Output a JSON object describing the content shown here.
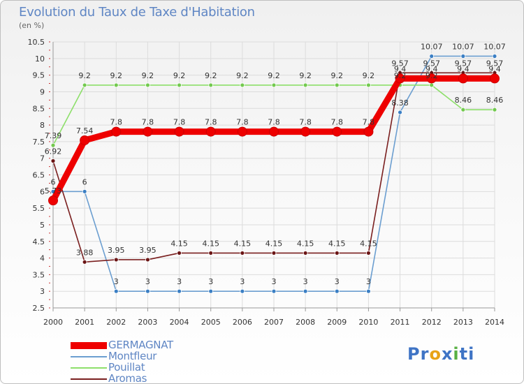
{
  "chart_data": {
    "type": "line",
    "title": "Evolution du Taux de Taxe d'Habitation",
    "unit_label": "(en %)",
    "x": [
      "2000",
      "2001",
      "2002",
      "2003",
      "2004",
      "2005",
      "2006",
      "2007",
      "2008",
      "2009",
      "2010",
      "2011",
      "2012",
      "2013",
      "2014"
    ],
    "y_ticks": [
      "2.5",
      "3",
      "3.5",
      "4",
      "4.5",
      "5",
      "5.5",
      "6",
      "6.5",
      "7",
      "7.5",
      "8",
      "8.5",
      "9",
      "9.5",
      "10",
      "10.5"
    ],
    "ylim": [
      2.5,
      10.5
    ],
    "grid": true,
    "series": [
      {
        "name": "GERMAGNAT",
        "color": "#ee0000",
        "marker": "#ee0000",
        "values": [
          5.73,
          7.54,
          7.8,
          7.8,
          7.8,
          7.8,
          7.8,
          7.8,
          7.8,
          7.8,
          7.8,
          9.4,
          9.4,
          9.4,
          9.4
        ],
        "labels": [
          "5.73",
          "7.54",
          "7.8",
          "7.8",
          "7.8",
          "7.8",
          "7.8",
          "7.8",
          "7.8",
          "7.8",
          "7.8",
          "9.4",
          "9.4",
          "9.4",
          "9.4"
        ]
      },
      {
        "name": "Montfleur",
        "color": "#6b9ed0",
        "marker": "#3b7fc4",
        "values": [
          6,
          6,
          3,
          3,
          3,
          3,
          3,
          3,
          3,
          3,
          3,
          8.38,
          10.07,
          10.07,
          10.07
        ],
        "labels": [
          "6",
          "6",
          "3",
          "3",
          "3",
          "3",
          "3",
          "3",
          "3",
          "3",
          "3",
          "8.38",
          "10.07",
          "10.07",
          "10.07"
        ]
      },
      {
        "name": "Pouillat",
        "color": "#8ddf6a",
        "marker": "#73c94f",
        "values": [
          7.39,
          9.2,
          9.2,
          9.2,
          9.2,
          9.2,
          9.2,
          9.2,
          9.2,
          9.2,
          9.2,
          9.2,
          9.2,
          8.46,
          8.46
        ],
        "labels": [
          "7.39",
          "9.2",
          "9.2",
          "9.2",
          "9.2",
          "9.2",
          "9.2",
          "9.2",
          "9.2",
          "9.2",
          "9.2",
          "9.2",
          "9.2",
          "8.46",
          "8.46"
        ]
      },
      {
        "name": "Aromas",
        "color": "#7a1f1f",
        "marker": "#6b1515",
        "values": [
          6.92,
          3.88,
          3.95,
          3.95,
          4.15,
          4.15,
          4.15,
          4.15,
          4.15,
          4.15,
          4.15,
          9.57,
          9.57,
          9.57,
          9.57
        ],
        "labels": [
          "6.92",
          "3.88",
          "3.95",
          "3.95",
          "4.15",
          "4.15",
          "4.15",
          "4.15",
          "4.15",
          "4.15",
          "4.15",
          "9.57",
          "9.57",
          "9.57",
          "9.57"
        ]
      }
    ]
  },
  "legend": {
    "items": [
      {
        "label": "GERMAGNAT",
        "color": "#ee0000",
        "thickness": 10
      },
      {
        "label": "Montfleur",
        "color": "#6b9ed0",
        "thickness": 2
      },
      {
        "label": "Pouillat",
        "color": "#8ddf6a",
        "thickness": 2
      },
      {
        "label": "Aromas",
        "color": "#7a1f1f",
        "thickness": 2
      }
    ]
  },
  "logo": {
    "text": "Proxiti"
  }
}
